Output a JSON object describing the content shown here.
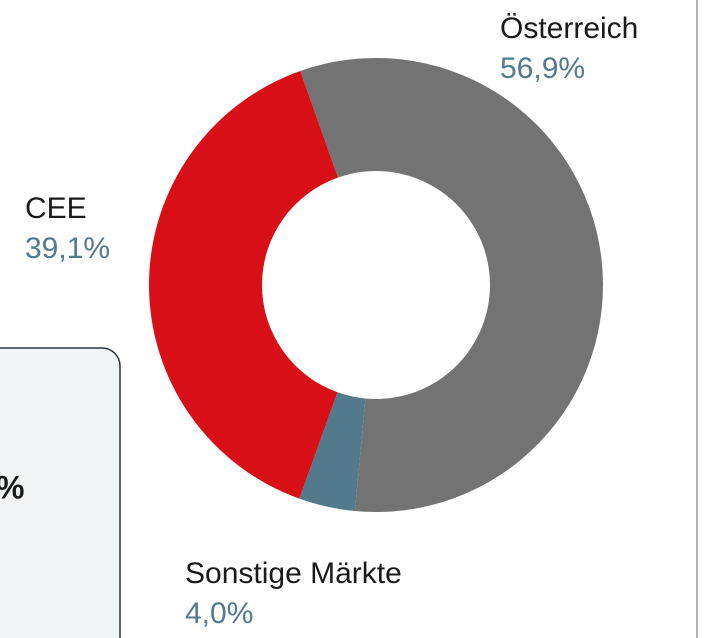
{
  "chart_data": {
    "type": "donut",
    "categories": [
      "Österreich",
      "Sonstige Märkte",
      "CEE"
    ],
    "values": [
      56.9,
      4.0,
      39.1
    ],
    "value_labels": [
      "56,9%",
      "4,0%",
      "39,1%"
    ],
    "colors": [
      "#737373",
      "#527a8c",
      "#d90f17"
    ]
  },
  "side_box": {
    "text": "%"
  }
}
